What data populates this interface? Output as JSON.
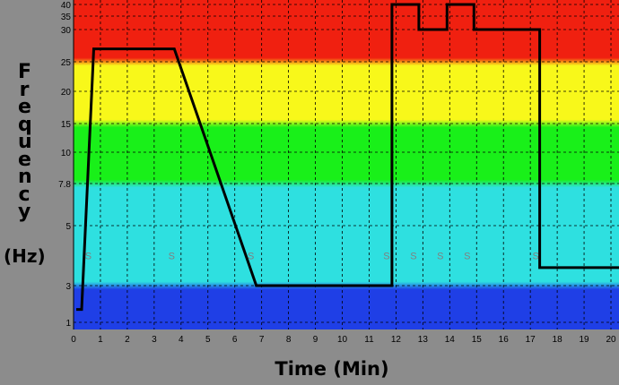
{
  "chart_data": {
    "type": "line",
    "title": "",
    "xlabel": "Time (Min)",
    "ylabel": "Frequency",
    "ylabel_unit": "(Hz)",
    "xlim": [
      0,
      20.3
    ],
    "x_ticks": [
      0,
      1,
      2,
      3,
      4,
      5,
      6,
      7,
      8,
      9,
      10,
      11,
      12,
      13,
      14,
      15,
      16,
      17,
      18,
      19,
      20
    ],
    "y_ticks": [
      {
        "value": 1,
        "label": "1"
      },
      {
        "value": 3,
        "label": "3"
      },
      {
        "value": 5,
        "label": "5"
      },
      {
        "value": 7.8,
        "label": "7.8"
      },
      {
        "value": 10,
        "label": "10"
      },
      {
        "value": 15,
        "label": "15"
      },
      {
        "value": 20,
        "label": "20"
      },
      {
        "value": 25,
        "label": "25"
      },
      {
        "value": 30,
        "label": "30"
      },
      {
        "value": 35,
        "label": "35"
      },
      {
        "value": 40,
        "label": "40"
      }
    ],
    "y_scale": "nonlinear (as printed on tick labels)",
    "grid": true,
    "bands": [
      {
        "from": 1,
        "to": 3,
        "color": "#1f3fe6"
      },
      {
        "from": 3,
        "to": 7.8,
        "color": "#2ee0e0"
      },
      {
        "from": 7.8,
        "to": 15,
        "color": "#19f019"
      },
      {
        "from": 15,
        "to": 25,
        "color": "#f8f81a"
      },
      {
        "from": 25,
        "to": 40,
        "color": "#f02010"
      }
    ],
    "series": [
      {
        "name": "",
        "color": "#000000",
        "points": [
          [
            0.1,
            1.7
          ],
          [
            0.3,
            1.7
          ],
          [
            0.75,
            27
          ],
          [
            3.75,
            27
          ],
          [
            6.8,
            3
          ],
          [
            11.85,
            3
          ],
          [
            11.85,
            40
          ],
          [
            12.85,
            40
          ],
          [
            12.85,
            30
          ],
          [
            13.9,
            30
          ],
          [
            13.9,
            40
          ],
          [
            14.9,
            40
          ],
          [
            14.9,
            30
          ],
          [
            17.35,
            30
          ],
          [
            17.35,
            3.6
          ],
          [
            20.3,
            3.6
          ]
        ]
      }
    ],
    "annotations": [
      {
        "x": 0.55,
        "y": 4,
        "text": "S"
      },
      {
        "x": 3.65,
        "y": 4,
        "text": "S"
      },
      {
        "x": 6.6,
        "y": 4,
        "text": "S"
      },
      {
        "x": 11.65,
        "y": 4,
        "text": "S"
      },
      {
        "x": 12.65,
        "y": 4,
        "text": "S"
      },
      {
        "x": 13.65,
        "y": 4,
        "text": "S"
      },
      {
        "x": 14.65,
        "y": 4,
        "text": "S"
      },
      {
        "x": 17.2,
        "y": 4,
        "text": "S"
      }
    ]
  }
}
